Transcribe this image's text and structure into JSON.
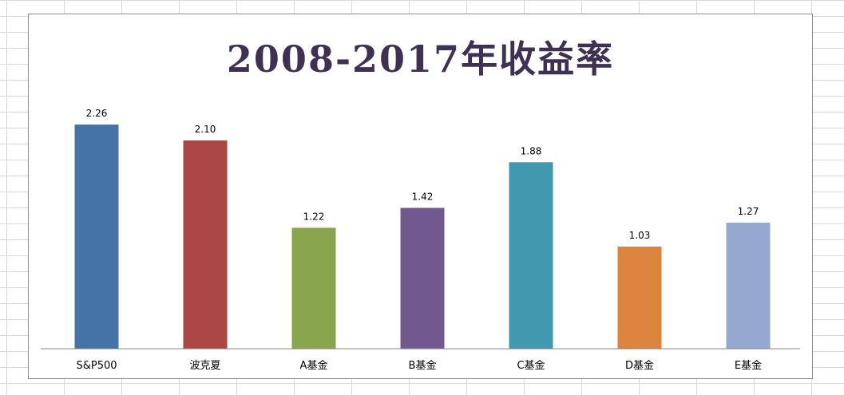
{
  "chart_data": {
    "type": "bar",
    "title": "2008-2017年收益率",
    "categories": [
      "S&P500",
      "波克夏",
      "A基金",
      "B基金",
      "C基金",
      "D基金",
      "E基金"
    ],
    "values": [
      2.26,
      2.1,
      1.22,
      1.42,
      1.88,
      1.03,
      1.27
    ],
    "value_labels": [
      "2.26",
      "2.10",
      "1.22",
      "1.42",
      "1.88",
      "1.03",
      "1.27"
    ],
    "colors": [
      "#4572a7",
      "#aa4643",
      "#89a54e",
      "#71588f",
      "#4198af",
      "#db843d",
      "#93a9cf"
    ],
    "ylim": [
      0,
      2.5
    ],
    "grid": false,
    "legend": "none",
    "xlabel": "",
    "ylabel": ""
  }
}
